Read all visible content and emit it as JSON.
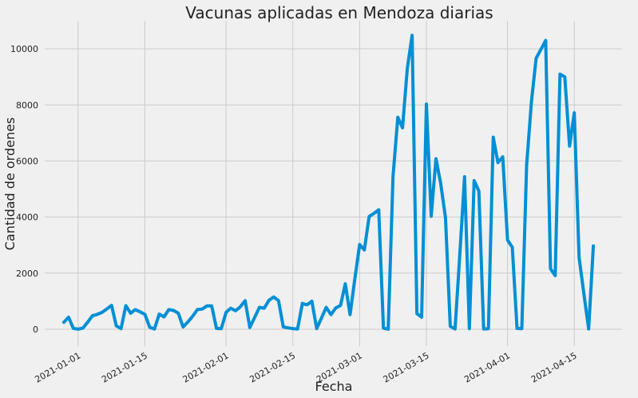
{
  "chart_data": {
    "type": "line",
    "title": "Vacunas aplicadas en Mendoza diarias",
    "xlabel": "Fecha",
    "ylabel": "Cantidad de ordenes",
    "start_date": "2020-12-29",
    "xlim": [
      "2020-12-25",
      "2021-04-25"
    ],
    "ylim": [
      -600,
      11000
    ],
    "x_ticks": [
      "2021-01-01",
      "2021-01-15",
      "2021-02-01",
      "2021-02-15",
      "2021-03-01",
      "2021-03-15",
      "2021-04-01",
      "2021-04-15"
    ],
    "y_ticks": [
      0,
      2000,
      4000,
      6000,
      8000,
      10000
    ],
    "grid": true,
    "line_color": "#008fd5",
    "series": [
      {
        "values": [
          250,
          430,
          30,
          0,
          40,
          250,
          480,
          530,
          600,
          720,
          850,
          120,
          20,
          840,
          570,
          700,
          620,
          530,
          70,
          10,
          540,
          440,
          700,
          670,
          570,
          80,
          260,
          460,
          700,
          720,
          830,
          830,
          30,
          20,
          600,
          750,
          660,
          800,
          1020,
          60,
          420,
          780,
          750,
          1030,
          1150,
          1020,
          80,
          50,
          20,
          10,
          920,
          870,
          1000,
          20,
          400,
          780,
          520,
          760,
          850,
          1620,
          520,
          1800,
          3020,
          2830,
          4020,
          4130,
          4260,
          40,
          0,
          5450,
          7560,
          7180,
          9300,
          10480,
          560,
          430,
          8030,
          4030,
          6080,
          5200,
          3980,
          100,
          10,
          2640,
          5440,
          20,
          5300,
          4930,
          10,
          20,
          6850,
          5940,
          6150,
          3180,
          2920,
          30,
          20,
          5840,
          8100,
          9660,
          9980,
          10300,
          2160,
          1910,
          9100,
          9000,
          6530,
          7720,
          2560,
          1270,
          10,
          2970
        ]
      }
    ]
  }
}
